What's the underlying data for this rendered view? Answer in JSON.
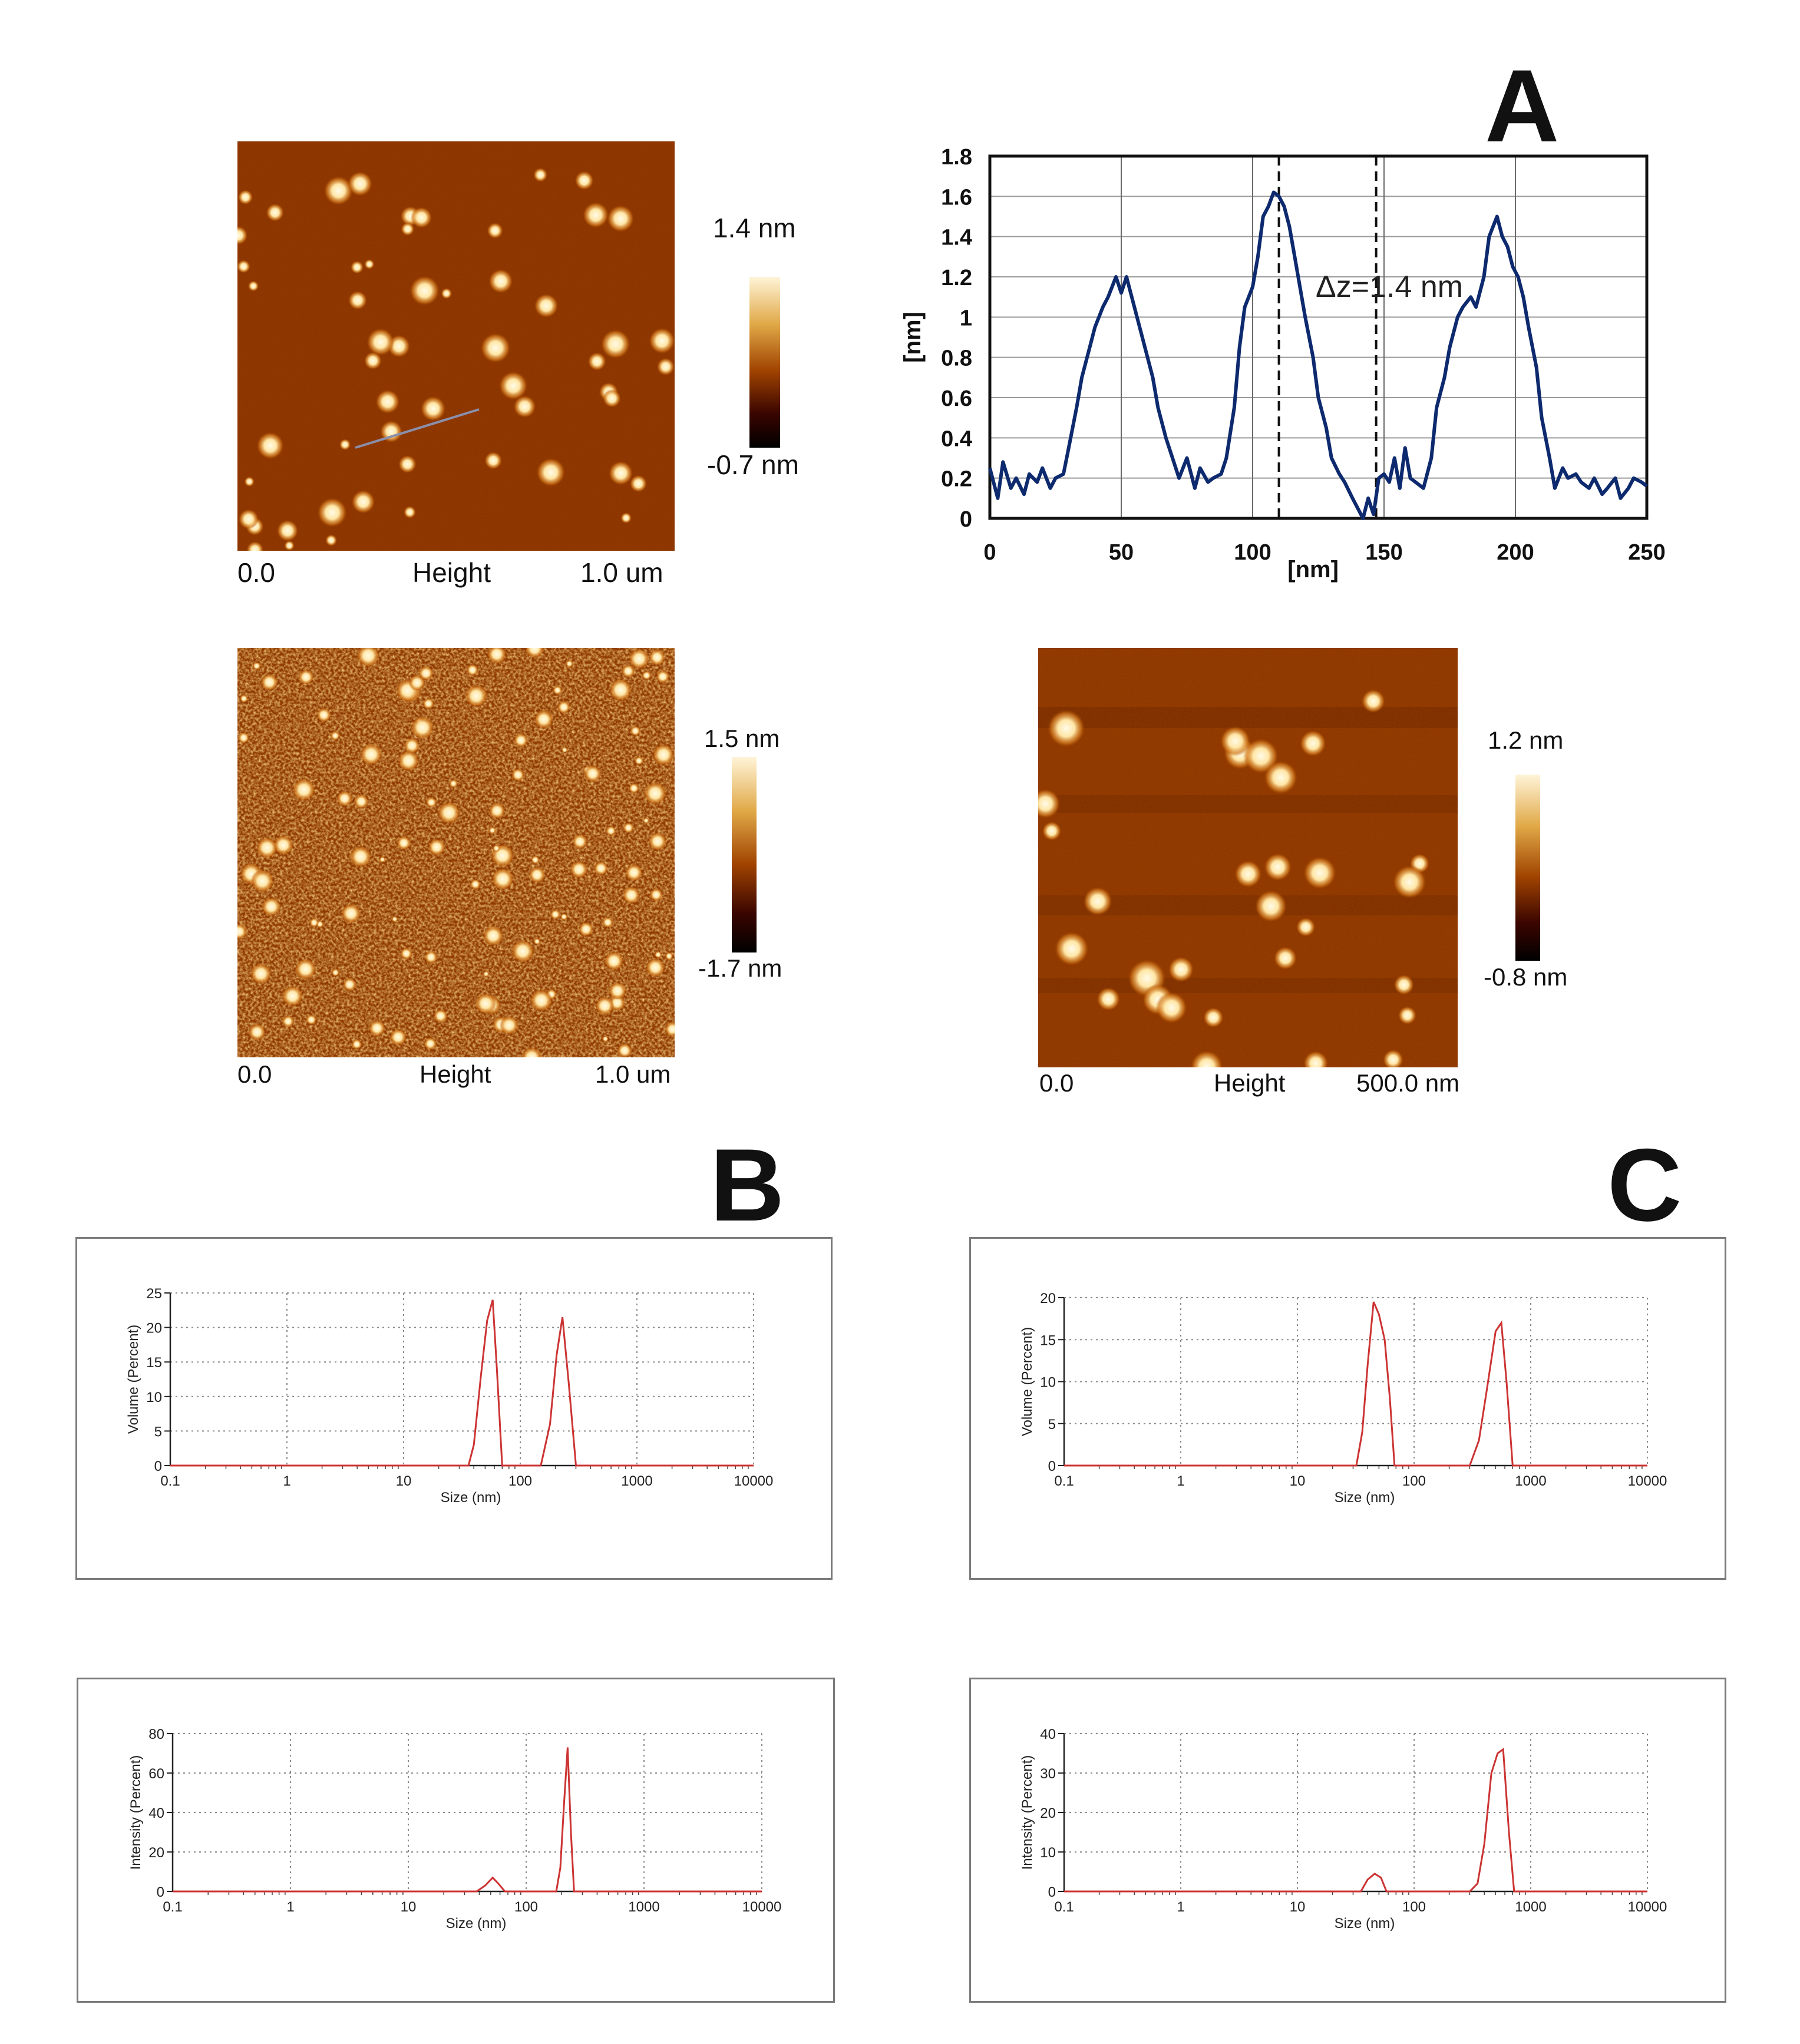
{
  "panel_labels": {
    "a": "A",
    "b": "B",
    "c": "C"
  },
  "afm": [
    {
      "id": "afm1",
      "x_start": "0.0",
      "x_label": "Height",
      "x_end": "1.0 um",
      "scale_max": "1.4 nm",
      "scale_min": "-0.7 nm"
    },
    {
      "id": "afm2",
      "x_start": "0.0",
      "x_label": "Height",
      "x_end": "1.0 um",
      "scale_max": "1.5 nm",
      "scale_min": "-1.7 nm"
    },
    {
      "id": "afm3",
      "x_start": "0.0",
      "x_label": "Height",
      "x_end": "500.0 nm",
      "scale_max": "1.2 nm",
      "scale_min": "-0.8 nm"
    }
  ],
  "colors": {
    "afm_dark": "#3a0a00",
    "afm_mid": "#9a3b00",
    "afm_bright": "#fff4d8",
    "profile_line": "#0e2a6e",
    "dls_line": "#cc3333"
  },
  "chart_data": [
    {
      "id": "height-profile",
      "type": "line",
      "title": "",
      "xlabel": "[nm]",
      "ylabel": "[nm]",
      "xlim": [
        0,
        250
      ],
      "ylim": [
        0,
        1.8
      ],
      "x_ticks": [
        "0",
        "50",
        "100",
        "150",
        "200",
        "250"
      ],
      "y_ticks": [
        "0",
        "0.2",
        "0.4",
        "0.6",
        "0.8",
        "1",
        "1.2",
        "1.4",
        "1.6",
        "1.8"
      ],
      "grid": true,
      "annotation": "Δz=1.4 nm",
      "dashed_lines_x": [
        110,
        147
      ],
      "series": [
        {
          "x": [
            0,
            3,
            5,
            8,
            10,
            13,
            15,
            18,
            20,
            23,
            25,
            28,
            30,
            33,
            35,
            38,
            40,
            43,
            45,
            48,
            50,
            52,
            55,
            58,
            60,
            62,
            64,
            67,
            70,
            72,
            75,
            78,
            80,
            83,
            85,
            88,
            90,
            93,
            95,
            97,
            100,
            102,
            104,
            106,
            108,
            110,
            112,
            114,
            116,
            118,
            120,
            123,
            125,
            128,
            130,
            133,
            135,
            138,
            140,
            142,
            144,
            146,
            148,
            150,
            152,
            154,
            156,
            158,
            160,
            162,
            165,
            168,
            170,
            173,
            175,
            178,
            180,
            183,
            185,
            188,
            190,
            193,
            195,
            197,
            199,
            201,
            203,
            205,
            208,
            210,
            213,
            215,
            218,
            220,
            223,
            225,
            228,
            230,
            233,
            235,
            238,
            240,
            243,
            245,
            248,
            250
          ],
          "y": [
            0.25,
            0.1,
            0.28,
            0.15,
            0.2,
            0.12,
            0.22,
            0.18,
            0.25,
            0.15,
            0.2,
            0.22,
            0.35,
            0.55,
            0.7,
            0.85,
            0.95,
            1.05,
            1.1,
            1.2,
            1.12,
            1.2,
            1.05,
            0.9,
            0.8,
            0.7,
            0.55,
            0.4,
            0.28,
            0.2,
            0.3,
            0.15,
            0.25,
            0.18,
            0.2,
            0.22,
            0.3,
            0.55,
            0.85,
            1.05,
            1.15,
            1.3,
            1.5,
            1.55,
            1.62,
            1.6,
            1.55,
            1.45,
            1.3,
            1.15,
            1.0,
            0.8,
            0.6,
            0.45,
            0.3,
            0.22,
            0.18,
            0.1,
            0.05,
            0.0,
            0.1,
            0.02,
            0.2,
            0.22,
            0.18,
            0.3,
            0.15,
            0.35,
            0.2,
            0.18,
            0.15,
            0.3,
            0.55,
            0.7,
            0.85,
            1.0,
            1.05,
            1.1,
            1.05,
            1.2,
            1.4,
            1.5,
            1.4,
            1.35,
            1.25,
            1.2,
            1.1,
            0.95,
            0.75,
            0.5,
            0.3,
            0.15,
            0.25,
            0.2,
            0.22,
            0.18,
            0.15,
            0.2,
            0.12,
            0.15,
            0.2,
            0.1,
            0.15,
            0.2,
            0.18,
            0.16
          ]
        }
      ]
    },
    {
      "id": "dls-b-volume",
      "type": "line",
      "xlabel": "Size (nm)",
      "ylabel": "Volume (Percent)",
      "xscale": "log",
      "xlim": [
        0.1,
        10000
      ],
      "ylim": [
        0,
        25
      ],
      "x_ticks": [
        "0.1",
        "1",
        "10",
        "100",
        "1000",
        "10000"
      ],
      "y_ticks": [
        "0",
        "5",
        "10",
        "15",
        "20",
        "25"
      ],
      "grid": true,
      "series": [
        {
          "x": [
            0.1,
            36,
            40,
            46,
            52,
            58,
            63,
            70,
            120,
            150,
            180,
            205,
            230,
            260,
            300,
            10000
          ],
          "y": [
            0,
            0,
            3,
            13,
            21,
            24,
            14,
            0,
            0,
            0,
            6,
            16,
            21.5,
            12,
            0,
            0
          ]
        }
      ]
    },
    {
      "id": "dls-b-intensity",
      "type": "line",
      "xlabel": "Size (nm)",
      "ylabel": "Intensity (Percent)",
      "xscale": "log",
      "xlim": [
        0.1,
        10000
      ],
      "ylim": [
        0,
        80
      ],
      "x_ticks": [
        "0.1",
        "1",
        "10",
        "100",
        "1000",
        "10000"
      ],
      "y_ticks": [
        "0",
        "20",
        "40",
        "60",
        "80"
      ],
      "grid": true,
      "series": [
        {
          "x": [
            0.1,
            38,
            45,
            52,
            58,
            66,
            180,
            195,
            210,
            225,
            240,
            255,
            10000
          ],
          "y": [
            0,
            0,
            3,
            7,
            4,
            0,
            0,
            12,
            45,
            73,
            30,
            0,
            0
          ]
        }
      ]
    },
    {
      "id": "dls-c-volume",
      "type": "line",
      "xlabel": "Size (nm)",
      "ylabel": "Volume (Percent)",
      "xscale": "log",
      "xlim": [
        0.1,
        10000
      ],
      "ylim": [
        0,
        20
      ],
      "x_ticks": [
        "0.1",
        "1",
        "10",
        "100",
        "1000",
        "10000"
      ],
      "y_ticks": [
        "0",
        "5",
        "10",
        "15",
        "20"
      ],
      "grid": true,
      "series": [
        {
          "x": [
            0.1,
            32,
            36,
            40,
            45,
            50,
            56,
            62,
            68,
            300,
            360,
            420,
            500,
            560,
            620,
            700,
            10000
          ],
          "y": [
            0,
            0,
            4,
            12,
            19.5,
            18,
            15,
            8,
            0,
            0,
            3,
            9,
            16,
            17,
            10,
            0,
            0
          ]
        }
      ]
    },
    {
      "id": "dls-c-intensity",
      "type": "line",
      "xlabel": "Size (nm)",
      "ylabel": "Intensity (Percent)",
      "xscale": "log",
      "xlim": [
        0.1,
        10000
      ],
      "ylim": [
        0,
        40
      ],
      "x_ticks": [
        "0.1",
        "1",
        "10",
        "100",
        "1000",
        "10000"
      ],
      "y_ticks": [
        "0",
        "10",
        "20",
        "30",
        "40"
      ],
      "grid": true,
      "series": [
        {
          "x": [
            0.1,
            35,
            40,
            46,
            52,
            58,
            300,
            350,
            400,
            460,
            520,
            580,
            650,
            720,
            10000
          ],
          "y": [
            0,
            0,
            3,
            4.5,
            3.5,
            0,
            0,
            2,
            12,
            30,
            35,
            36,
            15,
            0,
            0
          ]
        }
      ]
    }
  ]
}
